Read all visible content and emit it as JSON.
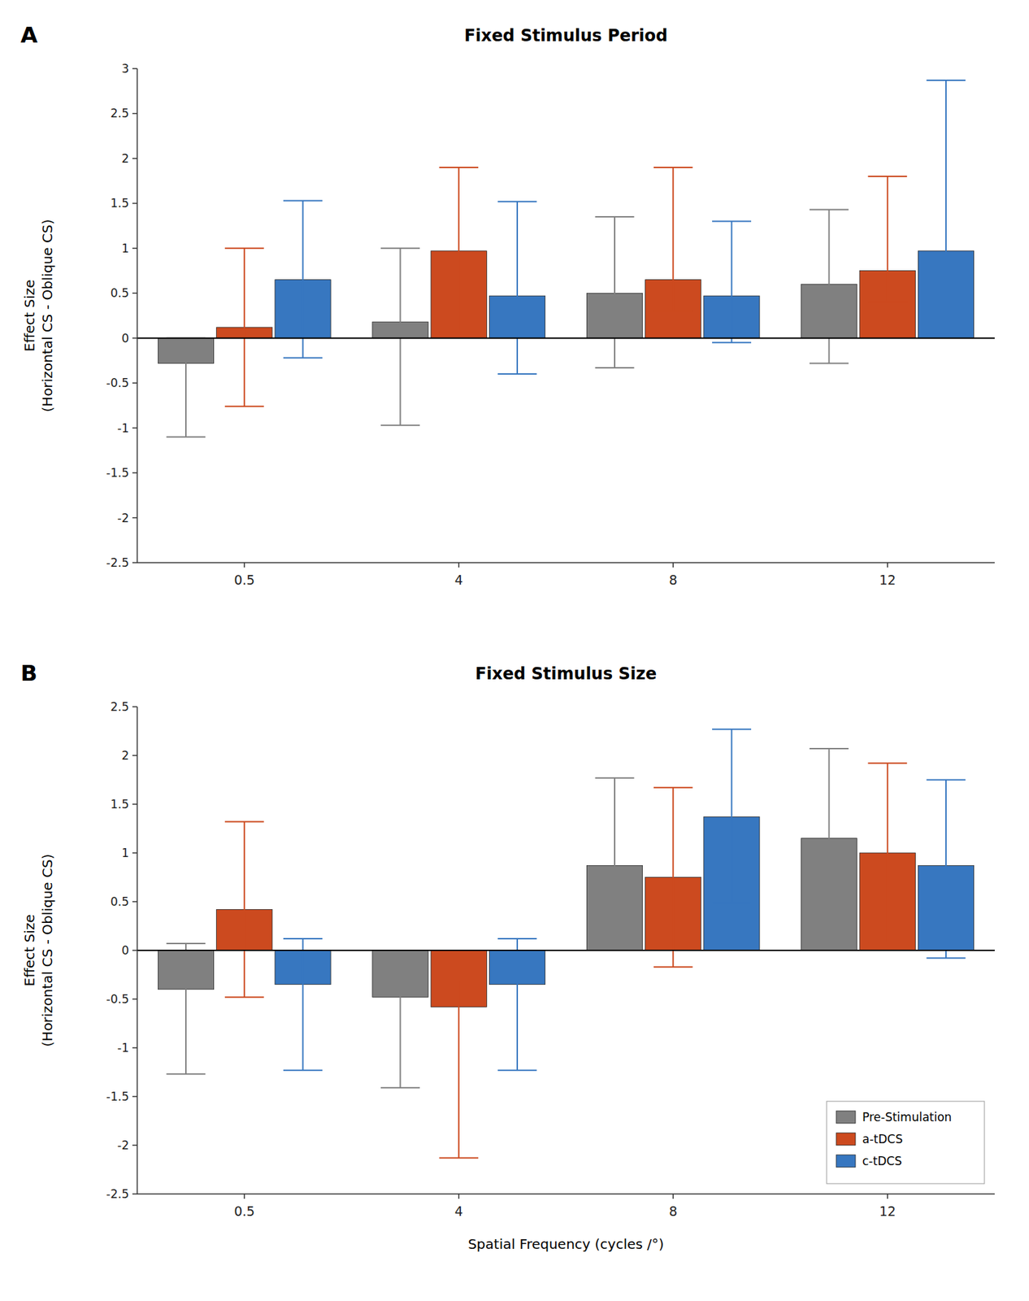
{
  "chart_data": [
    {
      "type": "bar",
      "title": "Fixed Stimulus Period",
      "annotations": [
        "A"
      ],
      "categories": [
        "0.5",
        "4",
        "8",
        "12"
      ],
      "series": [
        {
          "color": "#808080",
          "values": [
            -0.28,
            0.18,
            0.5,
            0.6
          ],
          "err_lo": [
            0.82,
            1.15,
            0.83,
            0.88
          ],
          "err_hi": [
            0.28,
            0.82,
            0.85,
            0.83
          ]
        },
        {
          "color": "#CC4A1F",
          "values": [
            0.12,
            0.97,
            0.65,
            0.75
          ],
          "err_lo": [
            0.88,
            0.9,
            0.35,
            0.35
          ],
          "err_hi": [
            0.88,
            0.93,
            1.25,
            1.05
          ]
        },
        {
          "color": "#3777C0",
          "values": [
            0.65,
            0.47,
            0.47,
            0.97
          ],
          "err_lo": [
            0.87,
            0.87,
            0.52,
            0.93
          ],
          "err_hi": [
            0.88,
            1.05,
            0.83,
            1.9
          ]
        }
      ],
      "ylabel": "Effect Size\n(Horizontal CS - Oblique CS)",
      "ylim": [
        -2.5,
        3.0
      ],
      "yticks": [
        -2.5,
        -2,
        -1.5,
        -1,
        -0.5,
        0,
        0.5,
        1,
        1.5,
        2,
        2.5,
        3
      ],
      "grid": false
    },
    {
      "type": "bar",
      "title": "Fixed Stimulus Size",
      "annotations": [
        "B"
      ],
      "categories": [
        "0.5",
        "4",
        "8",
        "12"
      ],
      "series": [
        {
          "name": "Pre-Stimulation",
          "color": "#808080",
          "values": [
            -0.4,
            -0.48,
            0.87,
            1.15
          ],
          "err_lo": [
            0.87,
            0.93,
            0.87,
            0.87
          ],
          "err_hi": [
            0.47,
            0.48,
            0.9,
            0.92
          ]
        },
        {
          "name": "a-tDCS",
          "color": "#CC4A1F",
          "values": [
            0.42,
            -0.58,
            0.75,
            1.0
          ],
          "err_lo": [
            0.9,
            1.55,
            0.92,
            0.92
          ],
          "err_hi": [
            0.9,
            0.27,
            0.92,
            0.92
          ]
        },
        {
          "name": "c-tDCS",
          "color": "#3777C0",
          "values": [
            -0.35,
            -0.35,
            1.37,
            0.87
          ],
          "err_lo": [
            0.88,
            0.88,
            0.88,
            0.95
          ],
          "err_hi": [
            0.47,
            0.47,
            0.9,
            0.88
          ]
        }
      ],
      "ylabel": "Effect Size\n(Horizontal CS - Oblique CS)",
      "xlabel": "Spatial Frequency (cycles /°)",
      "ylim": [
        -2.5,
        2.5
      ],
      "yticks": [
        -2.5,
        -2,
        -1.5,
        -1,
        -0.5,
        0,
        0.5,
        1,
        1.5,
        2,
        2.5
      ],
      "legend": "lower right",
      "grid": false
    }
  ]
}
